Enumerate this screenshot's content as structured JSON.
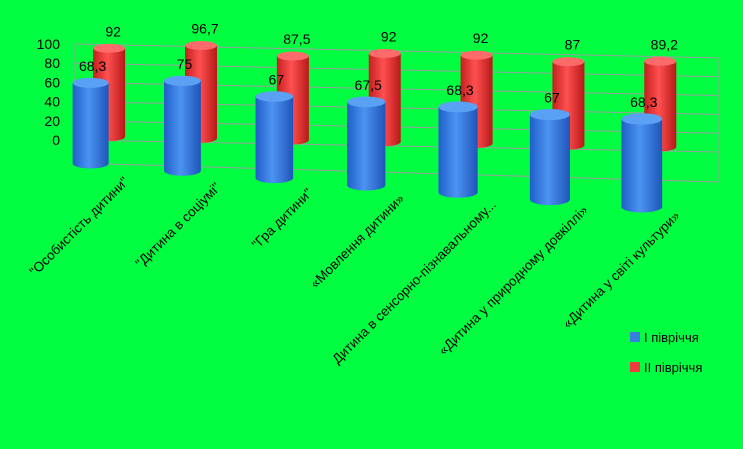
{
  "chart_data": {
    "type": "bar",
    "style": "3d-cylinder",
    "categories": [
      "\"Особистість дитини\"",
      "\"Дитина в соціумі\"",
      "\"Гра дитини\"",
      "«Мовлення дитини»",
      "Дитина в сенсорно-пізнавальному...",
      "«Дитина у природному довкіллі»",
      "«Дитина у світі культури»"
    ],
    "series": [
      {
        "name": "I півріччя",
        "color": "#3a7fe0",
        "values": [
          68.3,
          75,
          67,
          67.5,
          68.3,
          67,
          68.3
        ]
      },
      {
        "name": "II півріччя",
        "color": "#f03c3c",
        "values": [
          92,
          96.7,
          87.5,
          92,
          92,
          87,
          89.2
        ]
      }
    ],
    "data_labels": {
      "series_1": [
        "68,3",
        "75",
        "67",
        "67,5",
        "68,3",
        "67",
        "68,3"
      ],
      "series_2": [
        "92",
        "96,7",
        "87,5",
        "92",
        "92",
        "87",
        "89,2"
      ]
    },
    "y_ticks": [
      "0",
      "20",
      "40",
      "60",
      "80",
      "100"
    ],
    "ylim": [
      0,
      100
    ],
    "grid": true,
    "legend_position": "right",
    "background": "#00ff40"
  }
}
